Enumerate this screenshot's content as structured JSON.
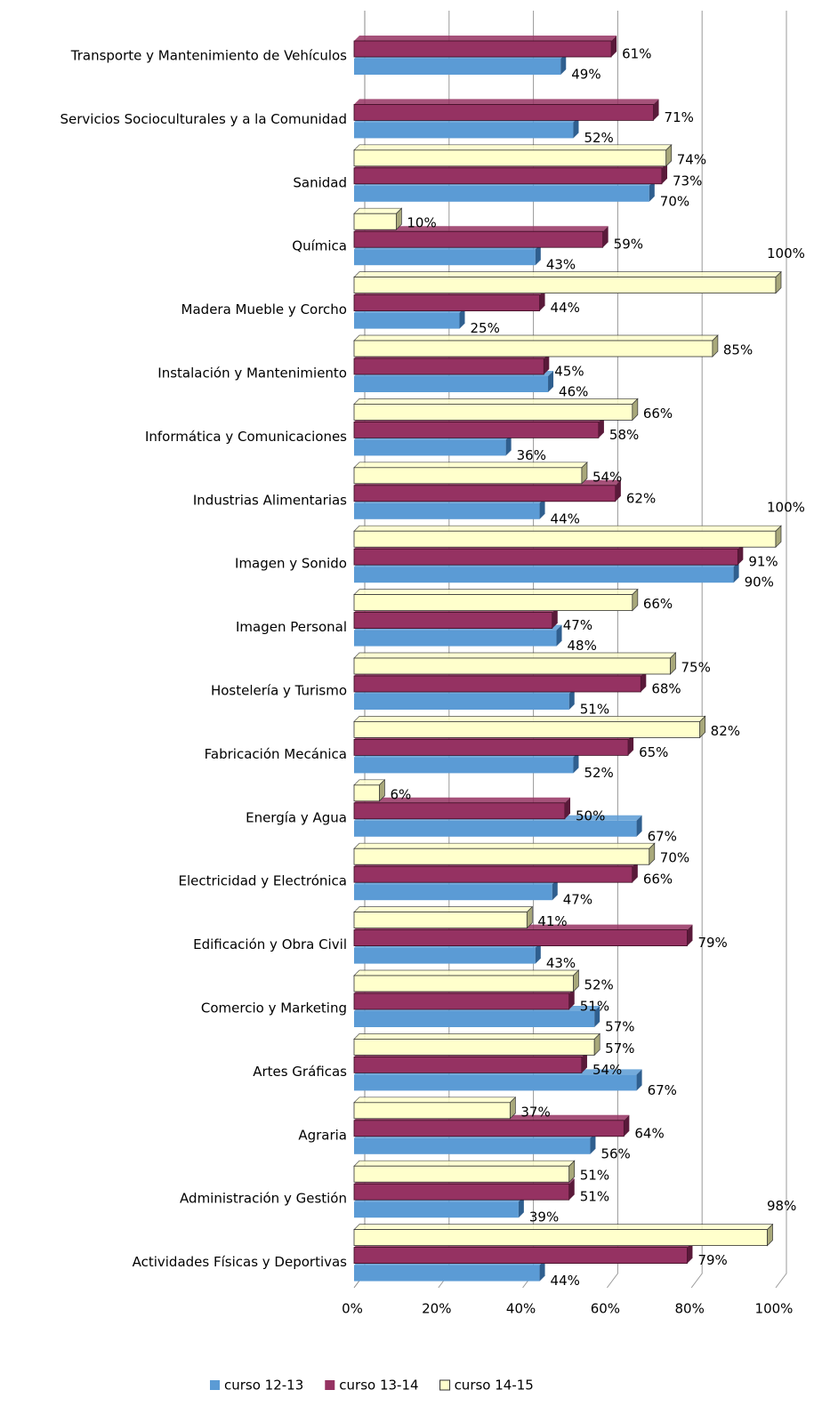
{
  "chart_data": {
    "type": "bar",
    "orientation": "horizontal",
    "categories": [
      "Transporte y Mantenimiento de Vehículos",
      "Servicios Socioculturales y a la Comunidad",
      "Sanidad",
      "Química",
      "Madera Mueble y Corcho",
      "Instalación y Mantenimiento",
      "Informática y Comunicaciones",
      "Industrias Alimentarias",
      "Imagen y Sonido",
      "Imagen Personal",
      "Hostelería y Turismo",
      "Fabricación Mecánica",
      "Energía y Agua",
      "Electricidad y Electrónica",
      "Edificación y Obra Civil",
      "Comercio y Marketing",
      "Artes Gráficas",
      "Agraria",
      "Administración y Gestión",
      "Actividades Físicas y Deportivas"
    ],
    "series": [
      {
        "name": "curso 12-13",
        "color": "#5b9bd5",
        "side": "#2f5f8f",
        "values": [
          49,
          52,
          70,
          43,
          25,
          46,
          36,
          44,
          90,
          48,
          51,
          52,
          67,
          47,
          43,
          57,
          67,
          56,
          39,
          44
        ],
        "value_labels": [
          "49%",
          "52%",
          "70%",
          "43%",
          "25%",
          "46%",
          "36%",
          "44%",
          "90%",
          "48%",
          "51%",
          "52%",
          "67%",
          "47%",
          "43%",
          "57%",
          "67%",
          "56%",
          "39%",
          "44%"
        ]
      },
      {
        "name": "curso 13-14",
        "color": "#953262",
        "side": "#5a1a3a",
        "values": [
          61,
          71,
          73,
          59,
          44,
          45,
          58,
          62,
          91,
          47,
          68,
          65,
          50,
          66,
          79,
          51,
          54,
          64,
          51,
          79
        ],
        "value_labels": [
          "61%",
          "71%",
          "73%",
          "59%",
          "44%",
          "45%",
          "58%",
          "62%",
          "91%",
          "47%",
          "68%",
          "65%",
          "50%",
          "66%",
          "79%",
          "51%",
          "54%",
          "64%",
          "51%",
          "79%"
        ]
      },
      {
        "name": "curso 14-15",
        "color": "#ffffcc",
        "side": "#a8a87a",
        "values": [
          null,
          null,
          74,
          10,
          100,
          85,
          66,
          54,
          100,
          66,
          75,
          82,
          6,
          70,
          41,
          52,
          57,
          37,
          51,
          98
        ],
        "value_labels": [
          null,
          null,
          "74%",
          "10%",
          "100%",
          "85%",
          "66%",
          "54%",
          "100%",
          "66%",
          "75%",
          "82%",
          "6%",
          "70%",
          "41%",
          "52%",
          "57%",
          "37%",
          "51%",
          "98%"
        ]
      }
    ],
    "xlim": [
      0,
      100
    ],
    "xticks": [
      {
        "value": 0,
        "label": "0%"
      },
      {
        "value": 20,
        "label": "20%"
      },
      {
        "value": 40,
        "label": "40%"
      },
      {
        "value": 60,
        "label": "60%"
      },
      {
        "value": 80,
        "label": "80%"
      },
      {
        "value": 100,
        "label": "100%"
      }
    ],
    "grid": true,
    "legend": "bottom"
  }
}
